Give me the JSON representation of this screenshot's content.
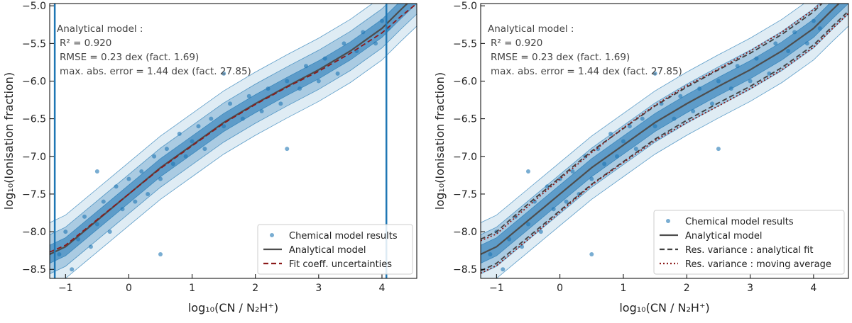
{
  "chart_data": [
    {
      "type": "scatter",
      "xlabel": "log₁₀(CN / N₂H⁺)",
      "ylabel": "log₁₀(Ionisation fraction)",
      "annotations": [
        "Analytical model :",
        "R² = 0.920",
        "RMSE = 0.23 dex (fact. 1.69)",
        "max. abs. error = 1.44 dex (fact. 27.85)"
      ],
      "xlim": [
        -1.25,
        4.55
      ],
      "ylim": [
        -8.62,
        -4.97
      ],
      "xticks": [
        {
          "value": -1,
          "label": "−1"
        },
        0,
        1,
        2,
        3,
        4
      ],
      "yticks": [
        {
          "value": -8.5,
          "label": "−8.5"
        },
        {
          "value": -8.0,
          "label": "−8.0"
        },
        {
          "value": -7.5,
          "label": "−7.5"
        },
        {
          "value": -7.0,
          "label": "−7.0"
        },
        {
          "value": -6.5,
          "label": "−6.5"
        },
        {
          "value": -6.0,
          "label": "−6.0"
        },
        {
          "value": -5.5,
          "label": "−5.5"
        },
        {
          "value": -5.0,
          "label": "−5.0"
        }
      ],
      "legend": "lower right",
      "vlines": {
        "color": "#1f77b4",
        "values": [
          -1.17,
          4.07
        ]
      },
      "series": [
        {
          "name": "Chemical model results",
          "color": "#1f77b4",
          "style": "points",
          "x": [
            -1.1,
            -1.0,
            -0.9,
            -0.8,
            -0.7,
            -0.6,
            -0.5,
            -0.4,
            -0.3,
            -0.2,
            -0.1,
            0,
            0.1,
            0.2,
            0.3,
            0.4,
            0.5,
            0.6,
            0.7,
            0.8,
            0.9,
            1.0,
            1.1,
            1.2,
            1.3,
            1.5,
            1.6,
            1.8,
            1.9,
            2.1,
            2.2,
            2.4,
            2.5,
            2.7,
            2.8,
            3.0,
            3.1,
            3.3,
            3.4,
            3.6,
            3.7,
            3.9,
            4.0,
            4.1,
            0.5,
            -0.5,
            2.5,
            1.5
          ],
          "values": [
            -8.3,
            -8.0,
            -8.5,
            -8.1,
            -7.8,
            -8.2,
            -7.9,
            -7.6,
            -8.0,
            -7.4,
            -7.7,
            -7.3,
            -7.6,
            -7.2,
            -7.5,
            -7.0,
            -7.3,
            -6.9,
            -7.1,
            -6.7,
            -7.0,
            -6.8,
            -6.6,
            -6.9,
            -6.5,
            -6.6,
            -6.3,
            -6.5,
            -6.2,
            -6.4,
            -6.1,
            -6.3,
            -6.0,
            -6.1,
            -5.8,
            -6.0,
            -5.7,
            -5.9,
            -5.5,
            -5.6,
            -5.35,
            -5.5,
            -5.2,
            -5.3,
            -8.3,
            -7.2,
            -6.9,
            -5.9
          ]
        },
        {
          "name": "Analytical model",
          "color": "#4d4d4d",
          "style": "solid",
          "x": [
            -1.25,
            -1,
            -0.5,
            0,
            0.5,
            1,
            1.5,
            2,
            2.5,
            3,
            3.5,
            4,
            4.3,
            4.55
          ],
          "values": [
            -8.3,
            -8.2,
            -7.85,
            -7.5,
            -7.15,
            -6.85,
            -6.55,
            -6.3,
            -6.07,
            -5.85,
            -5.6,
            -5.3,
            -5.05,
            -4.85
          ]
        },
        {
          "name": "Fit coeff. uncertainties",
          "color": "#8b1a1a",
          "style": "dashed",
          "x": [
            -1.25,
            -1,
            -0.5,
            0,
            0.5,
            1,
            1.5,
            2,
            2.5,
            3,
            3.5,
            4,
            4.3,
            4.55
          ],
          "values": [
            -8.27,
            -8.18,
            -7.84,
            -7.5,
            -7.16,
            -6.86,
            -6.56,
            -6.31,
            -6.08,
            -5.87,
            -5.63,
            -5.36,
            -5.14,
            -4.97
          ]
        }
      ]
    },
    {
      "type": "scatter",
      "xlabel": "log₁₀(CN / N₂H⁺)",
      "ylabel": "log₁₀(Ionisation fraction)",
      "annotations": [
        "Analytical model :",
        "R² = 0.920",
        "RMSE = 0.23 dex (fact. 1.69)",
        "max. abs. error = 1.44 dex (fact. 27.85)"
      ],
      "xlim": [
        -1.25,
        4.55
      ],
      "ylim": [
        -8.62,
        -4.97
      ],
      "xticks": [
        {
          "value": -1,
          "label": "−1"
        },
        0,
        1,
        2,
        3,
        4
      ],
      "yticks": [
        {
          "value": -8.5,
          "label": "−8.5"
        },
        {
          "value": -8.0,
          "label": "−8.0"
        },
        {
          "value": -7.5,
          "label": "−7.5"
        },
        {
          "value": -7.0,
          "label": "−7.0"
        },
        {
          "value": -6.5,
          "label": "−6.5"
        },
        {
          "value": -6.0,
          "label": "−6.0"
        },
        {
          "value": -5.5,
          "label": "−5.5"
        },
        {
          "value": -5.0,
          "label": "−5.0"
        }
      ],
      "legend": "lower right",
      "series": [
        {
          "name": "Chemical model results",
          "color": "#1f77b4",
          "style": "points",
          "x": [
            -1.1,
            -1.0,
            -0.9,
            -0.8,
            -0.7,
            -0.6,
            -0.5,
            -0.4,
            -0.3,
            -0.2,
            -0.1,
            0,
            0.1,
            0.2,
            0.3,
            0.4,
            0.5,
            0.6,
            0.7,
            0.8,
            0.9,
            1.0,
            1.1,
            1.2,
            1.3,
            1.5,
            1.6,
            1.8,
            1.9,
            2.1,
            2.2,
            2.4,
            2.5,
            2.7,
            2.8,
            3.0,
            3.1,
            3.3,
            3.4,
            3.6,
            3.7,
            3.9,
            4.0,
            4.1,
            0.5,
            -0.5,
            2.5,
            1.5
          ],
          "values": [
            -8.3,
            -8.0,
            -8.5,
            -8.1,
            -7.8,
            -8.2,
            -7.9,
            -7.6,
            -8.0,
            -7.4,
            -7.7,
            -7.3,
            -7.6,
            -7.2,
            -7.5,
            -7.0,
            -7.3,
            -6.9,
            -7.1,
            -6.7,
            -7.0,
            -6.8,
            -6.6,
            -6.9,
            -6.5,
            -6.6,
            -6.3,
            -6.5,
            -6.2,
            -6.4,
            -6.1,
            -6.3,
            -6.0,
            -6.1,
            -5.8,
            -6.0,
            -5.7,
            -5.9,
            -5.5,
            -5.6,
            -5.35,
            -5.5,
            -5.2,
            -5.3,
            -8.3,
            -7.2,
            -6.9,
            -5.9
          ]
        },
        {
          "name": "Analytical model",
          "color": "#4d4d4d",
          "style": "solid",
          "x": [
            -1.25,
            -1,
            -0.5,
            0,
            0.5,
            1,
            1.5,
            2,
            2.5,
            3,
            3.5,
            4,
            4.3,
            4.55
          ],
          "values": [
            -8.3,
            -8.2,
            -7.85,
            -7.5,
            -7.15,
            -6.85,
            -6.55,
            -6.3,
            -6.07,
            -5.85,
            -5.6,
            -5.3,
            -5.05,
            -4.85
          ]
        },
        {
          "name": "Res. variance : analytical fit",
          "color": "#404040",
          "style": "dashed",
          "x": [
            -1.25,
            -1,
            -0.5,
            0,
            0.5,
            1,
            1.5,
            2,
            2.5,
            3,
            3.5,
            4,
            4.3,
            4.55
          ],
          "upper": [
            -8.1,
            -8.0,
            -7.63,
            -7.28,
            -6.93,
            -6.63,
            -6.33,
            -6.08,
            -5.85,
            -5.63,
            -5.38,
            -5.08,
            -4.83,
            -4.63
          ],
          "lower": [
            -8.52,
            -8.42,
            -8.07,
            -7.72,
            -7.37,
            -7.07,
            -6.77,
            -6.52,
            -6.29,
            -6.07,
            -5.82,
            -5.52,
            -5.27,
            -5.07
          ]
        },
        {
          "name": "Res. variance : moving average",
          "color": "#8b1a1a",
          "style": "dotted",
          "x": [
            -1.25,
            -1,
            -0.5,
            0,
            0.5,
            1,
            1.5,
            2,
            2.5,
            3,
            3.5,
            4,
            4.3,
            4.55
          ],
          "upper": [
            -8.12,
            -8.03,
            -7.66,
            -7.3,
            -6.95,
            -6.62,
            -6.32,
            -6.06,
            -5.84,
            -5.6,
            -5.35,
            -5.05,
            -4.82,
            -4.62
          ],
          "lower": [
            -8.55,
            -8.45,
            -8.1,
            -7.74,
            -7.38,
            -7.08,
            -6.79,
            -6.55,
            -6.33,
            -6.1,
            -5.85,
            -5.55,
            -5.3,
            -5.1
          ]
        }
      ]
    }
  ]
}
